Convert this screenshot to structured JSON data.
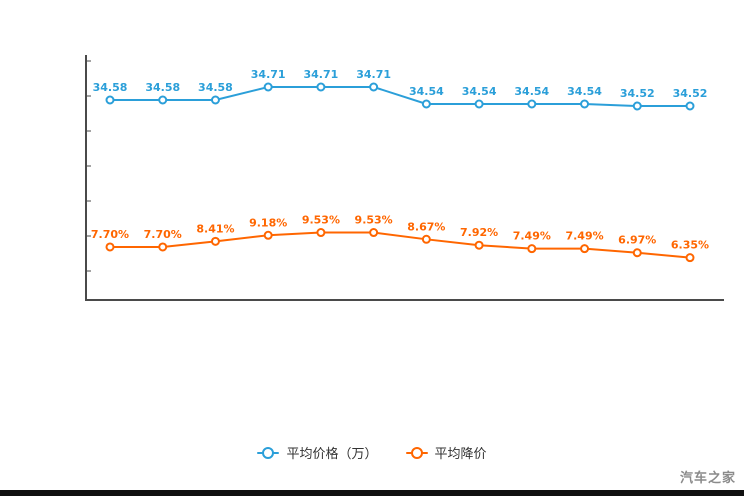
{
  "chart_data": {
    "type": "line",
    "title": "",
    "xlabel": "",
    "ylabel": "",
    "grid": false,
    "legend_position": "bottom",
    "categories": [
      "",
      "",
      "",
      "",
      "",
      "",
      "",
      "",
      "",
      "",
      "",
      ""
    ],
    "series": [
      {
        "name": "平均价格（万）",
        "color": "#2b9fd9",
        "ylim": [
          34.43,
          34.78
        ],
        "values": [
          34.58,
          34.58,
          34.58,
          34.71,
          34.71,
          34.71,
          34.54,
          34.54,
          34.54,
          34.54,
          34.52,
          34.52
        ],
        "labels": [
          "34.58",
          "34.58",
          "34.58",
          "34.71",
          "34.71",
          "34.71",
          "34.54",
          "34.54",
          "34.54",
          "34.54",
          "34.52",
          "34.52"
        ]
      },
      {
        "name": "平均降价",
        "color": "#ff6600",
        "ylim": [
          5.8,
          10.1
        ],
        "values": [
          7.7,
          7.7,
          8.41,
          9.18,
          9.53,
          9.53,
          8.67,
          7.92,
          7.49,
          7.49,
          6.97,
          6.35
        ],
        "labels": [
          "7.70%",
          "7.70%",
          "8.41%",
          "9.18%",
          "9.53%",
          "9.53%",
          "8.67%",
          "7.92%",
          "7.49%",
          "7.49%",
          "6.97%",
          "6.35%"
        ]
      }
    ]
  },
  "watermark": {
    "text": "汽车之家"
  },
  "axis": {
    "color": "#4a4a4a"
  }
}
